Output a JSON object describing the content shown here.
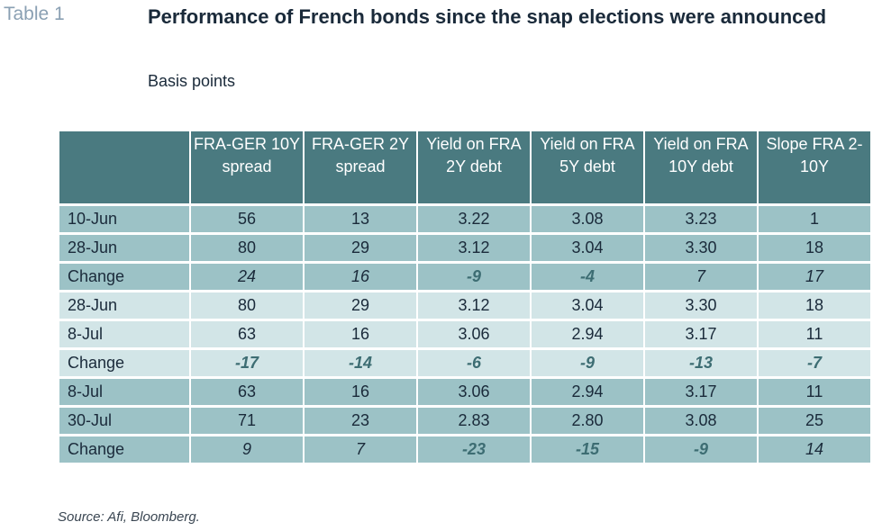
{
  "table_label": "Table 1",
  "title": "Performance of French bonds since the snap elections were announced",
  "subtitle": "Basis points",
  "columns": [
    "",
    "FRA-GER 10Y spread",
    "FRA-GER 2Y spread",
    "Yield on FRA 2Y debt",
    "Yield on FRA 5Y debt",
    "Yield on FRA 10Y debt",
    "Slope FRA 2-10Y"
  ],
  "rows": [
    {
      "label": "10-Jun",
      "values": [
        "56",
        "13",
        "3.22",
        "3.08",
        "3.23",
        "1"
      ],
      "style": "dark"
    },
    {
      "label": "28-Jun",
      "values": [
        "80",
        "29",
        "3.12",
        "3.04",
        "3.30",
        "18"
      ],
      "style": "dark"
    },
    {
      "label": "Change",
      "values": [
        "24",
        "16",
        "-9",
        "-4",
        "7",
        "17"
      ],
      "style": "dark"
    },
    {
      "label": "28-Jun",
      "values": [
        "80",
        "29",
        "3.12",
        "3.04",
        "3.30",
        "18"
      ],
      "style": "light"
    },
    {
      "label": "8-Jul",
      "values": [
        "63",
        "16",
        "3.06",
        "2.94",
        "3.17",
        "11"
      ],
      "style": "light"
    },
    {
      "label": "Change",
      "values": [
        "-17",
        "-14",
        "-6",
        "-9",
        "-13",
        "-7"
      ],
      "style": "light"
    },
    {
      "label": "8-Jul",
      "values": [
        "63",
        "16",
        "3.06",
        "2.94",
        "3.17",
        "11"
      ],
      "style": "dark"
    },
    {
      "label": "30-Jul",
      "values": [
        "71",
        "23",
        "2.83",
        "2.80",
        "3.08",
        "25"
      ],
      "style": "dark"
    },
    {
      "label": "Change",
      "values": [
        "9",
        "7",
        "-23",
        "-15",
        "-9",
        "14"
      ],
      "style": "dark"
    }
  ],
  "source": "Source: Afi, Bloomberg."
}
